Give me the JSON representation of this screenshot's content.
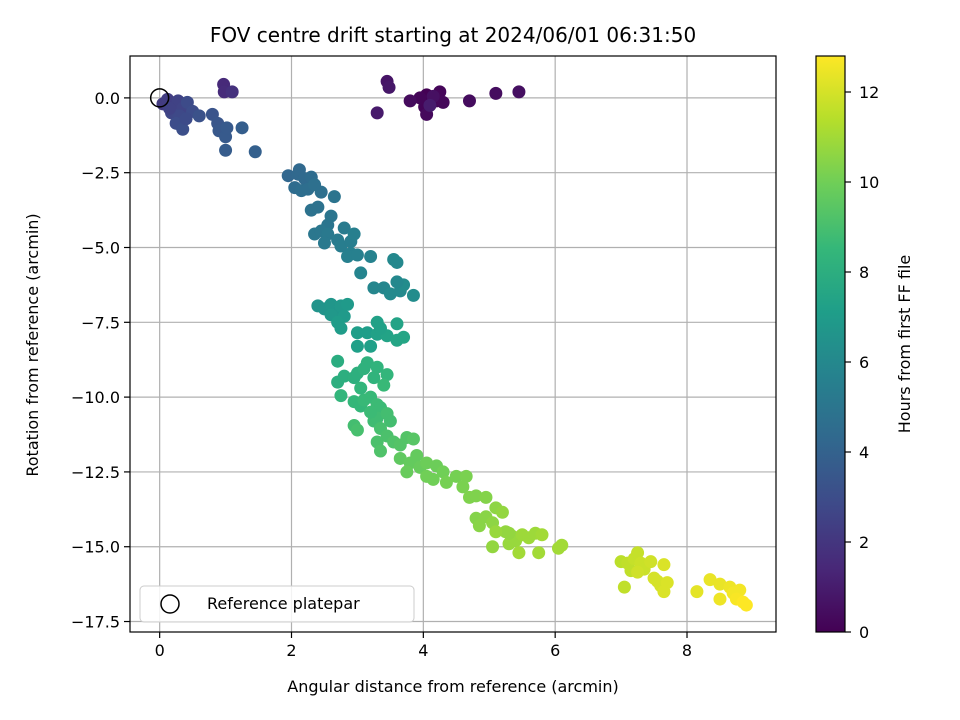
{
  "chart_data": {
    "type": "scatter",
    "title": "FOV centre drift starting at 2024/06/01 06:31:50",
    "xlabel": "Angular distance from reference (arcmin)",
    "ylabel": "Rotation from reference (arcmin)",
    "xlim": [
      -0.45,
      9.35
    ],
    "ylim": [
      -17.85,
      1.4
    ],
    "xticks": [
      0,
      2,
      4,
      6,
      8
    ],
    "yticks": [
      0.0,
      -2.5,
      -5.0,
      -7.5,
      -10.0,
      -12.5,
      -15.0,
      -17.5
    ],
    "xtick_labels": [
      "0",
      "2",
      "4",
      "6",
      "8"
    ],
    "ytick_labels": [
      "0.0",
      "−2.5",
      "−5.0",
      "−7.5",
      "−10.0",
      "−12.5",
      "−15.0",
      "−17.5"
    ],
    "grid": true,
    "colormap": "viridis",
    "colorbar": {
      "label": "Hours from first FF file",
      "min": 0,
      "max": 12.8,
      "ticks": [
        0,
        2,
        4,
        6,
        8,
        10,
        12
      ],
      "tick_labels": [
        "0",
        "2",
        "4",
        "6",
        "8",
        "10",
        "12"
      ]
    },
    "legend": {
      "placement": "lower-left",
      "entries": [
        {
          "label": "Reference platepar",
          "marker": "open-circle"
        }
      ]
    },
    "reference_point": {
      "x": 0,
      "y": 0
    },
    "colors": {
      "viridis": [
        "#440154",
        "#482878",
        "#3e4a89",
        "#31688e",
        "#26828e",
        "#1f9e89",
        "#35b779",
        "#6ece58",
        "#b5de2b",
        "#fde725"
      ]
    },
    "points": [
      {
        "x": 4.05,
        "y": 0.1,
        "h": 0.0
      },
      {
        "x": 4.2,
        "y": -0.1,
        "h": 0.1
      },
      {
        "x": 4.02,
        "y": -0.3,
        "h": 0.1
      },
      {
        "x": 3.95,
        "y": 0.0,
        "h": 0.15
      },
      {
        "x": 4.25,
        "y": 0.2,
        "h": 0.2
      },
      {
        "x": 4.3,
        "y": -0.15,
        "h": 0.25
      },
      {
        "x": 4.05,
        "y": -0.55,
        "h": 0.3
      },
      {
        "x": 3.8,
        "y": -0.1,
        "h": 0.35
      },
      {
        "x": 4.7,
        "y": -0.1,
        "h": 0.4
      },
      {
        "x": 5.1,
        "y": 0.15,
        "h": 0.45
      },
      {
        "x": 5.45,
        "y": 0.2,
        "h": 0.5
      },
      {
        "x": 4.15,
        "y": 0.05,
        "h": 0.55
      },
      {
        "x": 3.45,
        "y": 0.55,
        "h": 0.7
      },
      {
        "x": 3.48,
        "y": 0.35,
        "h": 0.8
      },
      {
        "x": 3.3,
        "y": -0.5,
        "h": 0.9
      },
      {
        "x": 4.1,
        "y": -0.25,
        "h": 1.0
      },
      {
        "x": 0.97,
        "y": 0.45,
        "h": 1.5
      },
      {
        "x": 0.98,
        "y": 0.2,
        "h": 1.6
      },
      {
        "x": 1.1,
        "y": 0.2,
        "h": 1.8
      },
      {
        "x": 0.05,
        "y": -0.2,
        "h": 2.2
      },
      {
        "x": 0.12,
        "y": -0.05,
        "h": 2.3
      },
      {
        "x": 0.2,
        "y": -0.25,
        "h": 2.4
      },
      {
        "x": 0.28,
        "y": -0.1,
        "h": 2.5
      },
      {
        "x": 0.35,
        "y": -0.35,
        "h": 2.6
      },
      {
        "x": 0.18,
        "y": -0.5,
        "h": 2.7
      },
      {
        "x": 0.3,
        "y": -0.6,
        "h": 2.8
      },
      {
        "x": 0.42,
        "y": -0.15,
        "h": 2.9
      },
      {
        "x": 0.5,
        "y": -0.45,
        "h": 3.0
      },
      {
        "x": 0.25,
        "y": -0.85,
        "h": 3.0
      },
      {
        "x": 0.35,
        "y": -1.05,
        "h": 3.1
      },
      {
        "x": 0.6,
        "y": -0.6,
        "h": 3.2
      },
      {
        "x": 0.8,
        "y": -0.55,
        "h": 3.3
      },
      {
        "x": 0.88,
        "y": -0.85,
        "h": 3.4
      },
      {
        "x": 0.9,
        "y": -1.1,
        "h": 3.5
      },
      {
        "x": 1.0,
        "y": -1.3,
        "h": 3.6
      },
      {
        "x": 1.0,
        "y": -1.75,
        "h": 3.7
      },
      {
        "x": 1.25,
        "y": -1.0,
        "h": 3.8
      },
      {
        "x": 1.45,
        "y": -1.8,
        "h": 3.9
      },
      {
        "x": 0.15,
        "y": -0.35,
        "h": 2.5
      },
      {
        "x": 0.4,
        "y": -0.7,
        "h": 2.9
      },
      {
        "x": 1.02,
        "y": -1.0,
        "h": 3.6
      },
      {
        "x": 1.95,
        "y": -2.6,
        "h": 4.2
      },
      {
        "x": 2.1,
        "y": -2.55,
        "h": 4.3
      },
      {
        "x": 2.12,
        "y": -2.4,
        "h": 4.3
      },
      {
        "x": 2.2,
        "y": -2.7,
        "h": 4.4
      },
      {
        "x": 2.3,
        "y": -2.65,
        "h": 4.5
      },
      {
        "x": 2.05,
        "y": -3.0,
        "h": 4.5
      },
      {
        "x": 2.15,
        "y": -3.1,
        "h": 4.6
      },
      {
        "x": 2.25,
        "y": -3.05,
        "h": 4.6
      },
      {
        "x": 2.35,
        "y": -2.9,
        "h": 4.7
      },
      {
        "x": 2.45,
        "y": -3.15,
        "h": 4.7
      },
      {
        "x": 2.3,
        "y": -3.75,
        "h": 4.8
      },
      {
        "x": 2.4,
        "y": -3.65,
        "h": 4.8
      },
      {
        "x": 2.65,
        "y": -3.3,
        "h": 4.9
      },
      {
        "x": 2.6,
        "y": -3.95,
        "h": 5.0
      },
      {
        "x": 2.55,
        "y": -4.25,
        "h": 5.0
      },
      {
        "x": 2.35,
        "y": -4.55,
        "h": 5.1
      },
      {
        "x": 2.45,
        "y": -4.45,
        "h": 5.1
      },
      {
        "x": 2.55,
        "y": -4.55,
        "h": 5.2
      },
      {
        "x": 2.5,
        "y": -4.85,
        "h": 5.2
      },
      {
        "x": 2.7,
        "y": -4.75,
        "h": 5.3
      },
      {
        "x": 2.8,
        "y": -4.35,
        "h": 5.3
      },
      {
        "x": 2.75,
        "y": -4.95,
        "h": 5.4
      },
      {
        "x": 2.9,
        "y": -4.8,
        "h": 5.4
      },
      {
        "x": 2.95,
        "y": -4.55,
        "h": 5.5
      },
      {
        "x": 2.9,
        "y": -5.2,
        "h": 5.5
      },
      {
        "x": 2.85,
        "y": -5.3,
        "h": 5.6
      },
      {
        "x": 3.0,
        "y": -5.25,
        "h": 5.6
      },
      {
        "x": 3.2,
        "y": -5.3,
        "h": 5.7
      },
      {
        "x": 3.05,
        "y": -5.85,
        "h": 5.8
      },
      {
        "x": 3.25,
        "y": -6.35,
        "h": 5.9
      },
      {
        "x": 3.4,
        "y": -6.35,
        "h": 5.9
      },
      {
        "x": 3.55,
        "y": -5.4,
        "h": 6.0
      },
      {
        "x": 3.6,
        "y": -5.5,
        "h": 6.0
      },
      {
        "x": 3.5,
        "y": -6.55,
        "h": 6.1
      },
      {
        "x": 3.65,
        "y": -6.45,
        "h": 6.1
      },
      {
        "x": 3.7,
        "y": -6.25,
        "h": 6.2
      },
      {
        "x": 3.85,
        "y": -6.6,
        "h": 6.2
      },
      {
        "x": 3.6,
        "y": -6.15,
        "h": 6.0
      },
      {
        "x": 2.4,
        "y": -6.95,
        "h": 6.6
      },
      {
        "x": 2.5,
        "y": -7.05,
        "h": 6.6
      },
      {
        "x": 2.6,
        "y": -6.9,
        "h": 6.7
      },
      {
        "x": 2.7,
        "y": -7.1,
        "h": 6.7
      },
      {
        "x": 2.75,
        "y": -6.95,
        "h": 6.8
      },
      {
        "x": 2.6,
        "y": -7.25,
        "h": 6.8
      },
      {
        "x": 2.8,
        "y": -7.3,
        "h": 6.9
      },
      {
        "x": 2.85,
        "y": -6.9,
        "h": 6.9
      },
      {
        "x": 2.7,
        "y": -7.5,
        "h": 7.0
      },
      {
        "x": 2.75,
        "y": -7.7,
        "h": 7.0
      },
      {
        "x": 3.0,
        "y": -7.85,
        "h": 7.1
      },
      {
        "x": 3.15,
        "y": -7.85,
        "h": 7.1
      },
      {
        "x": 3.0,
        "y": -8.3,
        "h": 7.2
      },
      {
        "x": 3.2,
        "y": -8.3,
        "h": 7.2
      },
      {
        "x": 3.3,
        "y": -7.5,
        "h": 7.3
      },
      {
        "x": 3.3,
        "y": -7.9,
        "h": 7.3
      },
      {
        "x": 3.45,
        "y": -7.95,
        "h": 7.4
      },
      {
        "x": 3.6,
        "y": -7.55,
        "h": 7.4
      },
      {
        "x": 3.6,
        "y": -8.1,
        "h": 7.5
      },
      {
        "x": 3.7,
        "y": -8.0,
        "h": 7.5
      },
      {
        "x": 3.35,
        "y": -7.7,
        "h": 7.3
      },
      {
        "x": 2.7,
        "y": -8.8,
        "h": 7.9
      },
      {
        "x": 2.7,
        "y": -9.5,
        "h": 8.0
      },
      {
        "x": 2.8,
        "y": -9.3,
        "h": 8.0
      },
      {
        "x": 2.95,
        "y": -9.35,
        "h": 8.1
      },
      {
        "x": 3.0,
        "y": -9.2,
        "h": 8.1
      },
      {
        "x": 3.1,
        "y": -9.05,
        "h": 8.2
      },
      {
        "x": 3.15,
        "y": -8.85,
        "h": 8.2
      },
      {
        "x": 3.25,
        "y": -9.35,
        "h": 8.3
      },
      {
        "x": 3.3,
        "y": -9.0,
        "h": 8.3
      },
      {
        "x": 3.45,
        "y": -9.25,
        "h": 8.4
      },
      {
        "x": 2.75,
        "y": -9.95,
        "h": 8.4
      },
      {
        "x": 2.95,
        "y": -10.15,
        "h": 8.5
      },
      {
        "x": 3.05,
        "y": -10.3,
        "h": 8.5
      },
      {
        "x": 3.1,
        "y": -10.1,
        "h": 8.6
      },
      {
        "x": 3.2,
        "y": -10.0,
        "h": 8.6
      },
      {
        "x": 3.3,
        "y": -10.25,
        "h": 8.7
      },
      {
        "x": 3.35,
        "y": -10.35,
        "h": 8.7
      },
      {
        "x": 3.25,
        "y": -10.8,
        "h": 8.8
      },
      {
        "x": 3.3,
        "y": -10.7,
        "h": 8.8
      },
      {
        "x": 3.45,
        "y": -10.55,
        "h": 8.9
      },
      {
        "x": 3.5,
        "y": -10.8,
        "h": 8.9
      },
      {
        "x": 2.95,
        "y": -10.95,
        "h": 8.9
      },
      {
        "x": 3.0,
        "y": -11.1,
        "h": 9.0
      },
      {
        "x": 3.35,
        "y": -11.05,
        "h": 9.0
      },
      {
        "x": 3.45,
        "y": -11.3,
        "h": 9.1
      },
      {
        "x": 3.3,
        "y": -11.5,
        "h": 9.1
      },
      {
        "x": 3.35,
        "y": -11.8,
        "h": 9.2
      },
      {
        "x": 3.55,
        "y": -11.5,
        "h": 9.2
      },
      {
        "x": 3.65,
        "y": -11.6,
        "h": 9.3
      },
      {
        "x": 3.75,
        "y": -11.35,
        "h": 9.3
      },
      {
        "x": 3.85,
        "y": -11.4,
        "h": 9.4
      },
      {
        "x": 3.05,
        "y": -9.7,
        "h": 8.4
      },
      {
        "x": 3.4,
        "y": -9.6,
        "h": 8.6
      },
      {
        "x": 3.2,
        "y": -10.5,
        "h": 8.7
      },
      {
        "x": 3.65,
        "y": -12.05,
        "h": 9.6
      },
      {
        "x": 3.8,
        "y": -12.2,
        "h": 9.7
      },
      {
        "x": 3.9,
        "y": -11.95,
        "h": 9.7
      },
      {
        "x": 3.75,
        "y": -12.5,
        "h": 9.8
      },
      {
        "x": 3.95,
        "y": -12.35,
        "h": 9.8
      },
      {
        "x": 4.05,
        "y": -12.2,
        "h": 9.9
      },
      {
        "x": 4.2,
        "y": -12.3,
        "h": 9.9
      },
      {
        "x": 4.05,
        "y": -12.65,
        "h": 10.0
      },
      {
        "x": 4.15,
        "y": -12.75,
        "h": 10.0
      },
      {
        "x": 4.3,
        "y": -12.5,
        "h": 10.0
      },
      {
        "x": 4.35,
        "y": -12.85,
        "h": 10.1
      },
      {
        "x": 4.5,
        "y": -12.65,
        "h": 10.1
      },
      {
        "x": 4.65,
        "y": -12.65,
        "h": 10.2
      },
      {
        "x": 4.6,
        "y": -13.0,
        "h": 10.2
      },
      {
        "x": 4.7,
        "y": -13.35,
        "h": 10.3
      },
      {
        "x": 4.8,
        "y": -13.3,
        "h": 10.3
      },
      {
        "x": 4.95,
        "y": -13.35,
        "h": 10.4
      },
      {
        "x": 4.8,
        "y": -14.05,
        "h": 10.4
      },
      {
        "x": 4.85,
        "y": -14.3,
        "h": 10.5
      },
      {
        "x": 4.95,
        "y": -14.0,
        "h": 10.5
      },
      {
        "x": 5.05,
        "y": -14.2,
        "h": 10.6
      },
      {
        "x": 5.1,
        "y": -13.7,
        "h": 10.6
      },
      {
        "x": 5.2,
        "y": -13.85,
        "h": 10.7
      },
      {
        "x": 5.25,
        "y": -14.5,
        "h": 10.7
      },
      {
        "x": 5.1,
        "y": -14.5,
        "h": 10.8
      },
      {
        "x": 5.35,
        "y": -14.65,
        "h": 10.8
      },
      {
        "x": 5.4,
        "y": -14.8,
        "h": 10.8
      },
      {
        "x": 5.5,
        "y": -14.6,
        "h": 10.9
      },
      {
        "x": 5.6,
        "y": -14.7,
        "h": 10.9
      },
      {
        "x": 5.45,
        "y": -15.2,
        "h": 11.0
      },
      {
        "x": 5.75,
        "y": -15.2,
        "h": 11.0
      },
      {
        "x": 5.7,
        "y": -14.55,
        "h": 10.9
      },
      {
        "x": 5.8,
        "y": -14.6,
        "h": 11.0
      },
      {
        "x": 5.05,
        "y": -15.0,
        "h": 10.7
      },
      {
        "x": 5.3,
        "y": -14.9,
        "h": 10.8
      },
      {
        "x": 6.1,
        "y": -14.95,
        "h": 11.0
      },
      {
        "x": 6.05,
        "y": -15.05,
        "h": 11.0
      },
      {
        "x": 5.3,
        "y": -14.55,
        "h": 10.7
      },
      {
        "x": 7.0,
        "y": -15.5,
        "h": 11.5
      },
      {
        "x": 7.1,
        "y": -15.55,
        "h": 11.6
      },
      {
        "x": 7.15,
        "y": -15.8,
        "h": 11.6
      },
      {
        "x": 7.2,
        "y": -15.4,
        "h": 11.7
      },
      {
        "x": 7.25,
        "y": -15.2,
        "h": 11.7
      },
      {
        "x": 7.3,
        "y": -15.55,
        "h": 11.8
      },
      {
        "x": 7.35,
        "y": -15.75,
        "h": 11.8
      },
      {
        "x": 7.45,
        "y": -15.5,
        "h": 11.9
      },
      {
        "x": 7.25,
        "y": -15.85,
        "h": 11.9
      },
      {
        "x": 7.5,
        "y": -16.05,
        "h": 12.0
      },
      {
        "x": 7.55,
        "y": -16.15,
        "h": 12.0
      },
      {
        "x": 7.6,
        "y": -16.3,
        "h": 12.0
      },
      {
        "x": 7.65,
        "y": -16.5,
        "h": 12.1
      },
      {
        "x": 7.7,
        "y": -16.2,
        "h": 12.1
      },
      {
        "x": 7.65,
        "y": -15.6,
        "h": 12.1
      },
      {
        "x": 7.05,
        "y": -16.35,
        "h": 11.6
      },
      {
        "x": 8.15,
        "y": -16.5,
        "h": 12.3
      },
      {
        "x": 8.35,
        "y": -16.1,
        "h": 12.4
      },
      {
        "x": 8.5,
        "y": -16.25,
        "h": 12.4
      },
      {
        "x": 8.5,
        "y": -16.75,
        "h": 12.5
      },
      {
        "x": 8.65,
        "y": -16.35,
        "h": 12.5
      },
      {
        "x": 8.7,
        "y": -16.55,
        "h": 12.6
      },
      {
        "x": 8.8,
        "y": -16.45,
        "h": 12.6
      },
      {
        "x": 8.75,
        "y": -16.75,
        "h": 12.7
      },
      {
        "x": 8.9,
        "y": -16.95,
        "h": 12.8
      },
      {
        "x": 8.85,
        "y": -16.85,
        "h": 12.8
      }
    ]
  }
}
